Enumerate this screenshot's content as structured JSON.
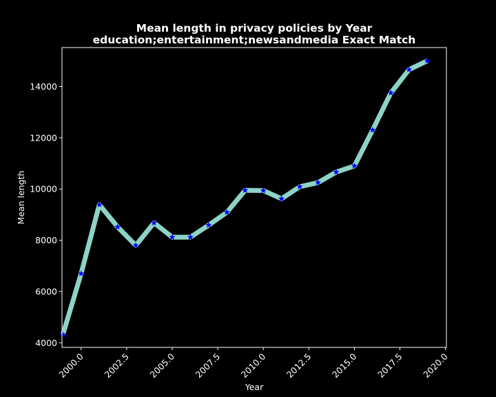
{
  "chart_data": {
    "type": "line",
    "title_line1": "Mean length in privacy policies by Year",
    "title_line2": "education;entertainment;newsandmedia Exact Match",
    "xlabel": "Year",
    "ylabel": "Mean length",
    "xlim": [
      1998.95,
      2020.05
    ],
    "ylim": [
      3820,
      15520
    ],
    "xticks": [
      2000.0,
      2002.5,
      2005.0,
      2007.5,
      2010.0,
      2012.5,
      2015.0,
      2017.5,
      2020.0
    ],
    "xtick_labels": [
      "2000.0",
      "2002.5",
      "2005.0",
      "2007.5",
      "2010.0",
      "2012.5",
      "2015.0",
      "2017.5",
      "2020.0"
    ],
    "yticks": [
      4000,
      6000,
      8000,
      10000,
      12000,
      14000
    ],
    "ytick_labels": [
      "4000",
      "6000",
      "8000",
      "10000",
      "12000",
      "14000"
    ],
    "line_color": "#8dd3c7",
    "marker_color": "#0000ff",
    "marker": "star",
    "grid": false,
    "series": [
      {
        "name": "Mean length",
        "x": [
          1999,
          2000,
          2001,
          2002,
          2003,
          2004,
          2005,
          2006,
          2007,
          2008,
          2009,
          2010,
          2011,
          2012,
          2013,
          2014,
          2015,
          2016,
          2017,
          2018,
          2019
        ],
        "y": [
          4320,
          6700,
          9390,
          8520,
          7800,
          8680,
          8120,
          8120,
          8590,
          9090,
          9950,
          9940,
          9620,
          10090,
          10250,
          10660,
          10900,
          12300,
          13750,
          14660,
          15000
        ]
      }
    ]
  }
}
